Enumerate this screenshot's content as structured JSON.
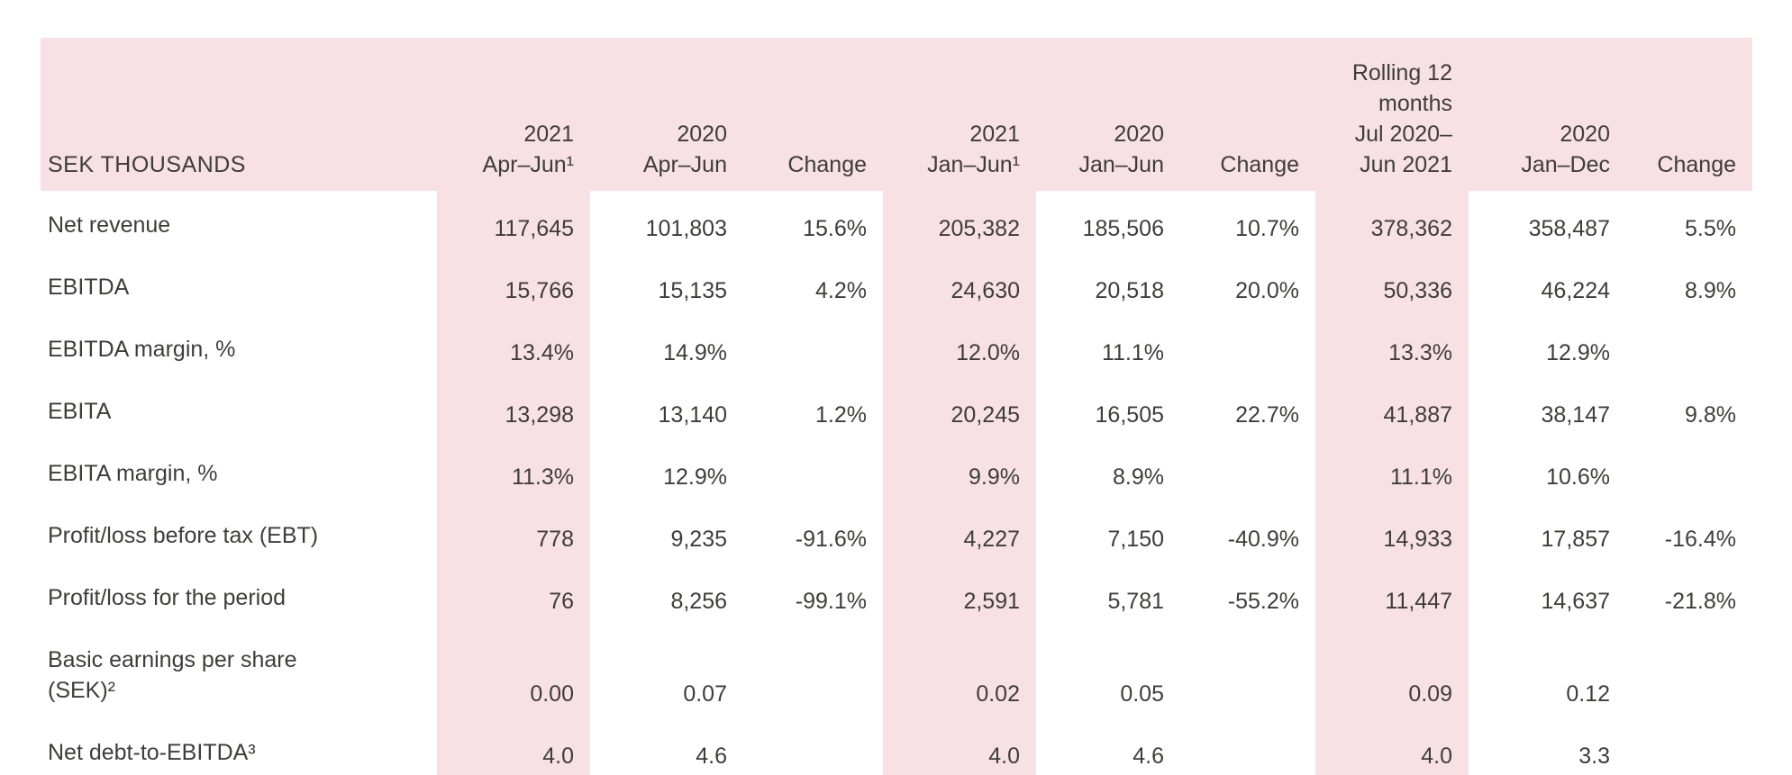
{
  "table": {
    "unit_header": "SEK THOUSANDS",
    "colors": {
      "highlight": "#f8e1e5",
      "text": "#3d3d3b",
      "background": "#ffffff"
    },
    "columns": [
      {
        "label": "2021 Apr–Jun¹",
        "lines": [
          "2021",
          "Apr–Jun¹"
        ],
        "highlight": true
      },
      {
        "label": "2020 Apr–Jun",
        "lines": [
          "2020",
          "Apr–Jun"
        ],
        "highlight": false
      },
      {
        "label": "Change",
        "lines": [
          "Change"
        ],
        "highlight": false
      },
      {
        "label": "2021 Jan–Jun¹",
        "lines": [
          "2021",
          "Jan–Jun¹"
        ],
        "highlight": true
      },
      {
        "label": "2020 Jan–Jun",
        "lines": [
          "2020",
          "Jan–Jun"
        ],
        "highlight": false
      },
      {
        "label": "Change",
        "lines": [
          "Change"
        ],
        "highlight": false
      },
      {
        "label": "Rolling 12 months Jul 2020–Jun 2021",
        "lines": [
          "Rolling 12",
          "months",
          "Jul 2020–",
          "Jun 2021"
        ],
        "highlight": true
      },
      {
        "label": "2020 Jan–Dec",
        "lines": [
          "2020",
          "Jan–Dec"
        ],
        "highlight": false
      },
      {
        "label": "Change",
        "lines": [
          "Change"
        ],
        "highlight": false
      }
    ],
    "rows": [
      {
        "label": "Net revenue",
        "values": [
          "117,645",
          "101,803",
          "15.6%",
          "205,382",
          "185,506",
          "10.7%",
          "378,362",
          "358,487",
          "5.5%"
        ]
      },
      {
        "label": "EBITDA",
        "values": [
          "15,766",
          "15,135",
          "4.2%",
          "24,630",
          "20,518",
          "20.0%",
          "50,336",
          "46,224",
          "8.9%"
        ]
      },
      {
        "label": "EBITDA margin, %",
        "values": [
          "13.4%",
          "14.9%",
          "",
          "12.0%",
          "11.1%",
          "",
          "13.3%",
          "12.9%",
          ""
        ]
      },
      {
        "label": "EBITA",
        "values": [
          "13,298",
          "13,140",
          "1.2%",
          "20,245",
          "16,505",
          "22.7%",
          "41,887",
          "38,147",
          "9.8%"
        ]
      },
      {
        "label": "EBITA margin, %",
        "values": [
          "11.3%",
          "12.9%",
          "",
          "9.9%",
          "8.9%",
          "",
          "11.1%",
          "10.6%",
          ""
        ]
      },
      {
        "label": "Profit/loss before tax (EBT)",
        "values": [
          "778",
          "9,235",
          "-91.6%",
          "4,227",
          "7,150",
          "-40.9%",
          "14,933",
          "17,857",
          "-16.4%"
        ]
      },
      {
        "label": "Profit/loss for the period",
        "values": [
          "76",
          "8,256",
          "-99.1%",
          "2,591",
          "5,781",
          "-55.2%",
          "11,447",
          "14,637",
          "-21.8%"
        ]
      },
      {
        "label": "Basic earnings per share\n(SEK)²",
        "values": [
          "0.00",
          "0.07",
          "",
          "0.02",
          "0.05",
          "",
          "0.09",
          "0.12",
          ""
        ]
      },
      {
        "label": "Net debt-to-EBITDA³",
        "values": [
          "4.0",
          "4.6",
          "",
          "4.0",
          "4.6",
          "",
          "4.0",
          "3.3",
          ""
        ]
      }
    ]
  }
}
